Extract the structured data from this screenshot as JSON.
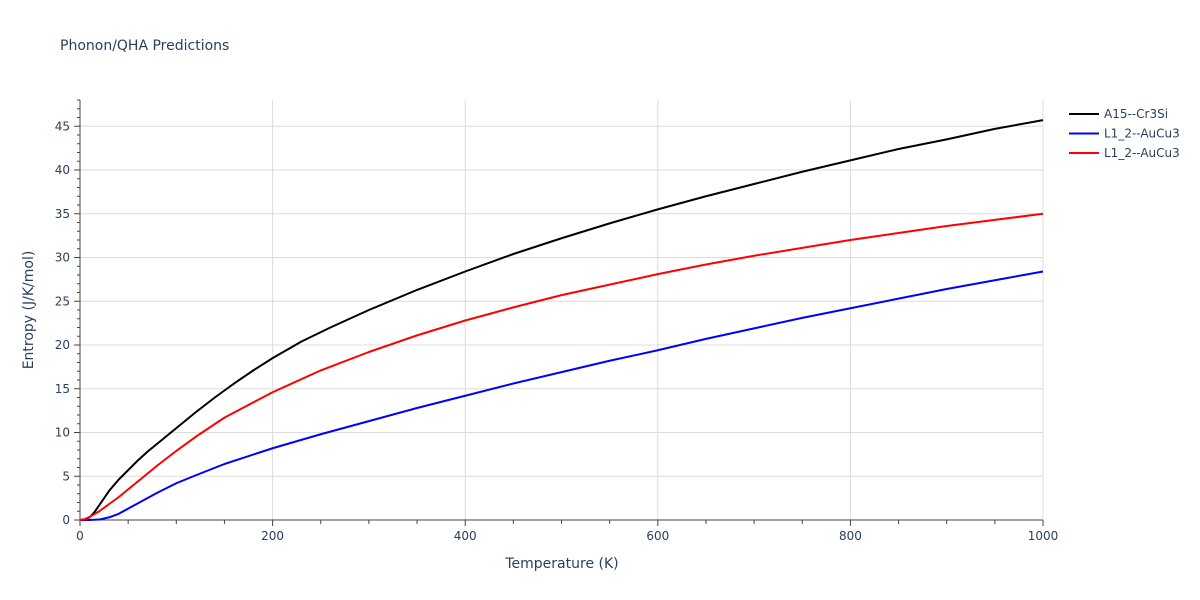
{
  "chart_data": {
    "type": "line",
    "title": "Phonon/QHA Predictions",
    "xlabel": "Temperature (K)",
    "ylabel": "Entropy (J/K/mol)",
    "xlim": [
      0,
      1000
    ],
    "ylim": [
      0,
      48
    ],
    "x_ticks": [
      0,
      200,
      400,
      600,
      800,
      1000
    ],
    "y_ticks": [
      0,
      5,
      10,
      15,
      20,
      25,
      30,
      35,
      40,
      45
    ],
    "grid": true,
    "legend_position": "top-right",
    "series": [
      {
        "name": "A15--Cr3Si",
        "color": "#000000",
        "x": [
          0,
          5,
          10,
          15,
          20,
          30,
          40,
          50,
          60,
          70,
          80,
          100,
          120,
          140,
          160,
          180,
          200,
          230,
          260,
          300,
          350,
          400,
          450,
          500,
          550,
          600,
          650,
          700,
          750,
          800,
          850,
          900,
          950,
          1000
        ],
        "y": [
          0,
          0.05,
          0.3,
          0.9,
          1.7,
          3.3,
          4.6,
          5.7,
          6.8,
          7.8,
          8.7,
          10.5,
          12.3,
          14.0,
          15.6,
          17.1,
          18.5,
          20.4,
          22.0,
          24.0,
          26.3,
          28.4,
          30.4,
          32.2,
          33.9,
          35.5,
          37.0,
          38.4,
          39.8,
          41.1,
          42.4,
          43.5,
          44.7,
          45.7
        ]
      },
      {
        "name": "L1_2--AuCu3",
        "color": "#0000ff",
        "x": [
          0,
          10,
          20,
          30,
          40,
          50,
          60,
          80,
          100,
          120,
          150,
          200,
          250,
          300,
          350,
          400,
          450,
          500,
          550,
          600,
          650,
          700,
          750,
          800,
          850,
          900,
          950,
          1000
        ],
        "y": [
          0,
          0,
          0.05,
          0.3,
          0.7,
          1.3,
          1.9,
          3.1,
          4.2,
          5.1,
          6.4,
          8.2,
          9.8,
          11.3,
          12.8,
          14.2,
          15.6,
          16.9,
          18.2,
          19.4,
          20.7,
          21.9,
          23.1,
          24.2,
          25.3,
          26.4,
          27.4,
          28.4
        ]
      },
      {
        "name": "L1_2--AuCu3",
        "color": "#ff0000",
        "x": [
          0,
          5,
          10,
          20,
          30,
          40,
          50,
          60,
          80,
          100,
          120,
          150,
          200,
          250,
          300,
          350,
          400,
          450,
          500,
          550,
          600,
          650,
          700,
          750,
          800,
          850,
          900,
          950,
          1000
        ],
        "y": [
          0,
          0.1,
          0.35,
          1.0,
          1.8,
          2.6,
          3.5,
          4.4,
          6.2,
          7.9,
          9.5,
          11.7,
          14.6,
          17.1,
          19.2,
          21.1,
          22.8,
          24.3,
          25.7,
          26.9,
          28.1,
          29.2,
          30.2,
          31.1,
          32.0,
          32.8,
          33.6,
          34.3,
          35.0
        ]
      }
    ]
  }
}
